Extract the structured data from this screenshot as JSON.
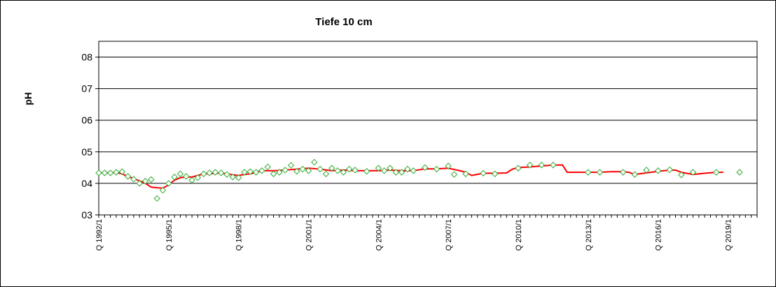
{
  "chart_data": {
    "type": "line",
    "title": "Tiefe  10 cm",
    "xlabel": "",
    "ylabel": "pH",
    "ylim": [
      3,
      8.5
    ],
    "xlim": [
      1992.0,
      2020.25
    ],
    "yticks": [
      {
        "value": 3,
        "label": "03"
      },
      {
        "value": 4,
        "label": "04"
      },
      {
        "value": 5,
        "label": "05"
      },
      {
        "value": 6,
        "label": "06"
      },
      {
        "value": 7,
        "label": "07"
      },
      {
        "value": 8,
        "label": "08"
      }
    ],
    "xticks": [
      {
        "value": 1992.0,
        "label": "Q 1992/1"
      },
      {
        "value": 1995.0,
        "label": "Q 1995/1"
      },
      {
        "value": 1998.0,
        "label": "Q 1998/1"
      },
      {
        "value": 2001.0,
        "label": "Q 2001/1"
      },
      {
        "value": 2004.0,
        "label": "Q 2004/1"
      },
      {
        "value": 2007.0,
        "label": "Q 2007/1"
      },
      {
        "value": 2010.0,
        "label": "Q 2010/1"
      },
      {
        "value": 2013.0,
        "label": "Q 2013/1"
      },
      {
        "value": 2016.0,
        "label": "Q 2016/1"
      },
      {
        "value": 2019.0,
        "label": "Q 2019/1"
      }
    ],
    "grid": {
      "horizontal": true,
      "vertical": false
    },
    "colors": {
      "line": "#ff0000",
      "markers": "#33aa33",
      "grid": "#000000"
    },
    "series": [
      {
        "kind": "line",
        "x": [
          1992.0,
          1992.25,
          1992.5,
          1992.75,
          1993.0,
          1993.25,
          1993.5,
          1993.75,
          1994.0,
          1994.25,
          1994.5,
          1994.75,
          1995.0,
          1995.25,
          1995.5,
          1995.75,
          1996.0,
          1996.25,
          1996.5,
          1996.75,
          1997.0,
          1997.25,
          1997.5,
          1997.75,
          1998.0,
          1998.25,
          1998.5,
          1998.75,
          1999.0,
          1999.5,
          2000.0,
          2000.5,
          2001.0,
          2001.5,
          2002.0,
          2002.5,
          2003.0,
          2003.5,
          2004.0,
          2004.5,
          2005.0,
          2005.5,
          2006.0,
          2006.5,
          2007.0,
          2007.5,
          2007.75,
          2008.0,
          2008.5,
          2009.0,
          2009.5,
          2009.75,
          2010.0,
          2010.5,
          2011.0,
          2011.5,
          2011.9,
          2012.1,
          2012.5,
          2013.0,
          2013.5,
          2014.0,
          2014.5,
          2014.75,
          2015.0,
          2015.5,
          2016.0,
          2016.5,
          2016.75,
          2017.0,
          2017.5,
          2018.0,
          2018.5,
          2018.8
        ],
        "y": [
          4.33,
          4.34,
          4.34,
          4.34,
          4.3,
          4.22,
          4.15,
          4.08,
          4.0,
          3.88,
          3.86,
          3.85,
          3.95,
          4.1,
          4.18,
          4.2,
          4.2,
          4.25,
          4.3,
          4.3,
          4.32,
          4.32,
          4.3,
          4.27,
          4.25,
          4.28,
          4.3,
          4.35,
          4.4,
          4.4,
          4.42,
          4.45,
          4.48,
          4.45,
          4.4,
          4.42,
          4.4,
          4.4,
          4.4,
          4.42,
          4.4,
          4.4,
          4.46,
          4.46,
          4.48,
          4.4,
          4.35,
          4.25,
          4.32,
          4.32,
          4.33,
          4.45,
          4.5,
          4.52,
          4.55,
          4.58,
          4.58,
          4.35,
          4.35,
          4.35,
          4.35,
          4.37,
          4.37,
          4.35,
          4.28,
          4.33,
          4.38,
          4.42,
          4.42,
          4.35,
          4.28,
          4.32,
          4.35,
          4.35
        ]
      },
      {
        "kind": "scatter",
        "x": [
          1992.0,
          1992.25,
          1992.5,
          1992.75,
          1993.0,
          1993.25,
          1993.5,
          1993.75,
          1994.0,
          1994.25,
          1994.5,
          1994.75,
          1995.0,
          1995.25,
          1995.5,
          1995.75,
          1996.0,
          1996.25,
          1996.5,
          1996.75,
          1997.0,
          1997.25,
          1997.5,
          1997.75,
          1998.0,
          1998.25,
          1998.5,
          1998.75,
          1999.0,
          1999.25,
          1999.5,
          1999.75,
          2000.0,
          2000.25,
          2000.5,
          2000.75,
          2001.0,
          2001.25,
          2001.5,
          2001.75,
          2002.0,
          2002.25,
          2002.5,
          2002.75,
          2003.0,
          2003.5,
          2004.0,
          2004.25,
          2004.5,
          2004.75,
          2005.0,
          2005.25,
          2005.5,
          2006.0,
          2006.5,
          2007.0,
          2007.25,
          2007.75,
          2008.5,
          2009.0,
          2010.0,
          2010.5,
          2011.0,
          2011.5,
          2013.0,
          2013.5,
          2014.5,
          2015.0,
          2015.5,
          2016.0,
          2016.5,
          2017.0,
          2017.5,
          2018.5,
          2019.5
        ],
        "y": [
          4.33,
          4.33,
          4.33,
          4.35,
          4.37,
          4.22,
          4.13,
          4.0,
          4.07,
          4.12,
          3.52,
          3.78,
          4.0,
          4.2,
          4.3,
          4.22,
          4.1,
          4.18,
          4.3,
          4.33,
          4.35,
          4.33,
          4.28,
          4.2,
          4.18,
          4.35,
          4.37,
          4.35,
          4.4,
          4.52,
          4.3,
          4.35,
          4.42,
          4.57,
          4.38,
          4.45,
          4.4,
          4.67,
          4.45,
          4.3,
          4.48,
          4.4,
          4.35,
          4.45,
          4.42,
          4.38,
          4.48,
          4.4,
          4.48,
          4.35,
          4.35,
          4.45,
          4.4,
          4.5,
          4.45,
          4.55,
          4.28,
          4.3,
          4.32,
          4.3,
          4.48,
          4.58,
          4.58,
          4.58,
          4.35,
          4.35,
          4.35,
          4.28,
          4.42,
          4.4,
          4.43,
          4.27,
          4.35,
          4.35,
          4.35
        ]
      }
    ]
  }
}
